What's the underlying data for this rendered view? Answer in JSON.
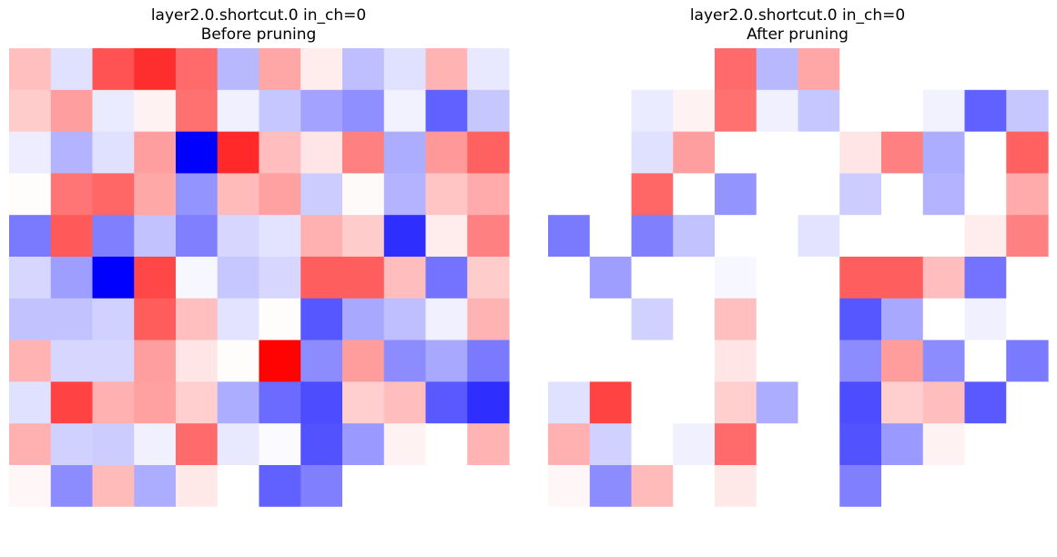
{
  "chart_data": [
    {
      "type": "heatmap",
      "title": "layer2.0.shortcut.0 in_ch=0\nBefore pruning",
      "colormap": "bwr",
      "color_range": [
        -1,
        1
      ],
      "rows": 12,
      "cols": 12,
      "values": [
        [
          0.25,
          -0.12,
          0.68,
          0.82,
          0.58,
          -0.28,
          0.35,
          0.07,
          -0.25,
          -0.12,
          0.3,
          -0.09
        ],
        [
          0.2,
          0.38,
          -0.08,
          0.05,
          0.56,
          -0.06,
          -0.22,
          -0.36,
          -0.44,
          -0.05,
          -0.62,
          -0.22
        ],
        [
          -0.07,
          -0.3,
          -0.12,
          0.38,
          -1.0,
          0.84,
          0.26,
          0.1,
          0.5,
          -0.32,
          0.4,
          0.62
        ],
        [
          0.01,
          0.54,
          0.6,
          0.34,
          -0.42,
          0.27,
          0.37,
          -0.2,
          0.02,
          -0.3,
          0.23,
          0.33
        ],
        [
          -0.52,
          0.65,
          -0.5,
          -0.24,
          -0.5,
          -0.16,
          -0.11,
          0.31,
          0.2,
          -0.82,
          0.07,
          0.5
        ],
        [
          -0.16,
          -0.38,
          -1.0,
          0.72,
          -0.03,
          -0.22,
          -0.16,
          0.63,
          0.63,
          0.26,
          -0.55,
          0.2
        ],
        [
          -0.24,
          -0.24,
          -0.18,
          0.64,
          0.25,
          -0.11,
          0.01,
          -0.66,
          -0.34,
          -0.25,
          -0.06,
          0.3
        ],
        [
          0.3,
          -0.16,
          -0.16,
          0.38,
          0.1,
          0.01,
          0.99,
          -0.45,
          0.39,
          -0.45,
          -0.34,
          -0.52
        ],
        [
          -0.12,
          0.74,
          0.31,
          0.37,
          0.19,
          -0.32,
          -0.58,
          -0.7,
          0.19,
          0.26,
          -0.65,
          -0.82
        ],
        [
          0.31,
          -0.18,
          -0.2,
          -0.06,
          0.58,
          -0.09,
          -0.02,
          -0.68,
          -0.4,
          0.05,
          0.0,
          0.3
        ],
        [
          0.03,
          -0.45,
          0.27,
          -0.32,
          0.09,
          0.0,
          -0.62,
          -0.5,
          0.0,
          0.0,
          0.0,
          0.0
        ],
        [
          0.0,
          0.0,
          0.0,
          0.0,
          0.0,
          0.0,
          0.0,
          0.0,
          0.0,
          0.0,
          0.0,
          0.0
        ]
      ]
    },
    {
      "type": "heatmap",
      "title": "layer2.0.shortcut.0 in_ch=0\nAfter pruning",
      "colormap": "bwr",
      "color_range": [
        -1,
        1
      ],
      "rows": 12,
      "cols": 12,
      "values": [
        [
          0.0,
          0.0,
          0.0,
          0.0,
          0.58,
          -0.28,
          0.35,
          0.0,
          0.0,
          0.0,
          0.0,
          0.0
        ],
        [
          0.0,
          0.0,
          -0.08,
          0.05,
          0.56,
          -0.06,
          -0.22,
          0.0,
          0.0,
          -0.05,
          -0.62,
          -0.22
        ],
        [
          0.0,
          0.0,
          -0.12,
          0.38,
          0.0,
          0.0,
          0.0,
          0.1,
          0.5,
          -0.32,
          0.0,
          0.62
        ],
        [
          0.0,
          0.0,
          0.6,
          0.0,
          -0.42,
          0.0,
          0.0,
          -0.2,
          0.0,
          -0.3,
          0.0,
          0.33
        ],
        [
          -0.52,
          0.0,
          -0.5,
          -0.24,
          0.0,
          0.0,
          -0.11,
          0.0,
          0.0,
          0.0,
          0.07,
          0.5
        ],
        [
          0.0,
          -0.38,
          0.0,
          0.0,
          -0.03,
          0.0,
          0.0,
          0.63,
          0.63,
          0.26,
          -0.55,
          0.0
        ],
        [
          0.0,
          0.0,
          -0.18,
          0.0,
          0.25,
          0.0,
          0.0,
          -0.66,
          -0.34,
          0.0,
          -0.06,
          0.0
        ],
        [
          0.0,
          0.0,
          0.0,
          0.0,
          0.1,
          0.0,
          0.0,
          -0.45,
          0.39,
          -0.45,
          0.0,
          -0.52
        ],
        [
          -0.12,
          0.74,
          0.0,
          0.0,
          0.19,
          -0.32,
          0.0,
          -0.7,
          0.19,
          0.26,
          -0.65,
          0.0
        ],
        [
          0.31,
          -0.18,
          0.0,
          -0.06,
          0.58,
          0.0,
          0.0,
          -0.68,
          -0.4,
          0.05,
          0.0,
          0.0
        ],
        [
          0.03,
          -0.45,
          0.27,
          0.0,
          0.09,
          0.0,
          0.0,
          -0.5,
          0.0,
          0.0,
          0.0,
          0.0
        ],
        [
          0.0,
          0.0,
          0.0,
          0.0,
          0.0,
          0.0,
          0.0,
          0.0,
          0.0,
          0.0,
          0.0,
          0.0
        ]
      ]
    }
  ]
}
